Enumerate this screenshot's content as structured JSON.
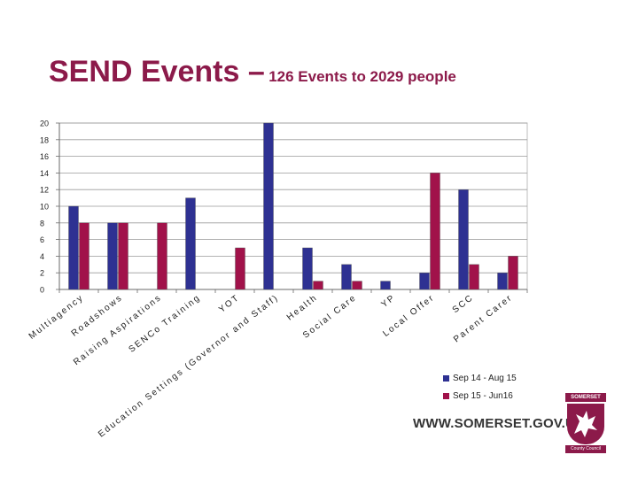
{
  "title": {
    "main": "SEND Events –",
    "sub": "126 Events to 2029 people"
  },
  "chart_data": {
    "type": "bar",
    "title": "",
    "xlabel": "",
    "ylabel": "",
    "ylim": [
      0,
      20
    ],
    "yticks": [
      0,
      2,
      4,
      6,
      8,
      10,
      12,
      14,
      16,
      18,
      20
    ],
    "categories": [
      "Multiagency",
      "Roadshows",
      "Raising Aspirations",
      "SENCo Training",
      "YOT",
      "Education Settings (Governor and Staff)",
      "Health",
      "Social Care",
      "YP",
      "Local Offer",
      "SCC",
      "Parent Carer"
    ],
    "series": [
      {
        "name": "Sep 14 - Aug 15",
        "color": "#2e3192",
        "values": [
          10,
          8,
          0,
          11,
          0,
          20,
          5,
          3,
          1,
          2,
          12,
          2
        ]
      },
      {
        "name": "Sep 15 - Jun16",
        "color": "#a1124a",
        "values": [
          8,
          8,
          8,
          0,
          5,
          0,
          1,
          1,
          0,
          14,
          3,
          4
        ]
      }
    ],
    "grid": true,
    "legend": "bottom-right"
  },
  "footer": {
    "url": "WWW.SOMERSET.GOV.UK",
    "logo_top": "SOMERSET",
    "logo_bottom": "County Council"
  },
  "colors": {
    "accent": "#8c1a4a",
    "series1": "#2e3192",
    "series2": "#a1124a"
  }
}
